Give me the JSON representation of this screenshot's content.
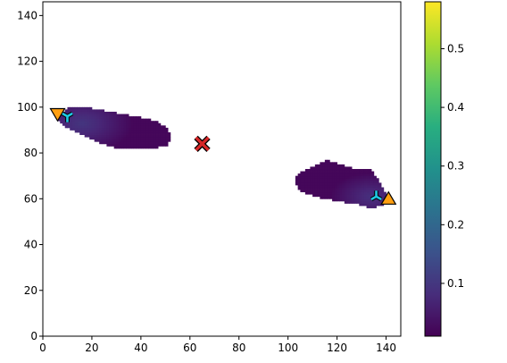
{
  "chart_data": {
    "type": "heatmap",
    "title": "",
    "xlabel": "",
    "ylabel": "",
    "xlim": [
      0,
      146
    ],
    "ylim": [
      0,
      146
    ],
    "x_ticks": [
      0,
      20,
      40,
      60,
      80,
      100,
      120,
      140
    ],
    "y_ticks": [
      0,
      20,
      40,
      60,
      80,
      100,
      120,
      140
    ],
    "colormap": "viridis",
    "colorbar": {
      "range": [
        0.01,
        0.58
      ],
      "ticks": [
        0.1,
        0.2,
        0.3,
        0.4,
        0.5
      ]
    },
    "blobs": [
      {
        "name": "upper-left region",
        "outline": [
          [
            6,
            95
          ],
          [
            9,
            99
          ],
          [
            12,
            100
          ],
          [
            18,
            100
          ],
          [
            28,
            98
          ],
          [
            38,
            96
          ],
          [
            46,
            94
          ],
          [
            51,
            91
          ],
          [
            52,
            87
          ],
          [
            51,
            83
          ],
          [
            44,
            82
          ],
          [
            36,
            82
          ],
          [
            30,
            82
          ],
          [
            22,
            85
          ],
          [
            14,
            89
          ],
          [
            8,
            92
          ]
        ],
        "peak": [
          16,
          93
        ],
        "peak_value": 0.1,
        "base_value": 0.02
      },
      {
        "name": "lower-right region",
        "outline": [
          [
            104,
            71
          ],
          [
            110,
            74
          ],
          [
            116,
            77
          ],
          [
            122,
            75
          ],
          [
            128,
            73
          ],
          [
            134,
            73
          ],
          [
            137,
            68
          ],
          [
            140,
            62
          ],
          [
            139,
            57
          ],
          [
            134,
            56
          ],
          [
            127,
            58
          ],
          [
            120,
            59
          ],
          [
            111,
            61
          ],
          [
            104,
            64
          ],
          [
            103,
            68
          ]
        ],
        "peak": [
          134,
          61
        ],
        "peak_value": 0.09,
        "base_value": 0.02
      }
    ],
    "markers": [
      {
        "name": "x",
        "shape": "x",
        "x": 65,
        "y": 84,
        "color": "#d62728"
      },
      {
        "name": "triangle-down",
        "shape": "triangle-down",
        "x": 6,
        "y": 97,
        "color": "#ff9f10"
      },
      {
        "name": "tri-down",
        "shape": "tri-down",
        "x": 10,
        "y": 96,
        "color": "#1ec9e3"
      },
      {
        "name": "triangle-up",
        "shape": "triangle-up",
        "x": 141,
        "y": 60,
        "color": "#ff9f10"
      },
      {
        "name": "tri-up",
        "shape": "tri-up",
        "x": 136,
        "y": 61,
        "color": "#1ec9e3"
      }
    ]
  }
}
